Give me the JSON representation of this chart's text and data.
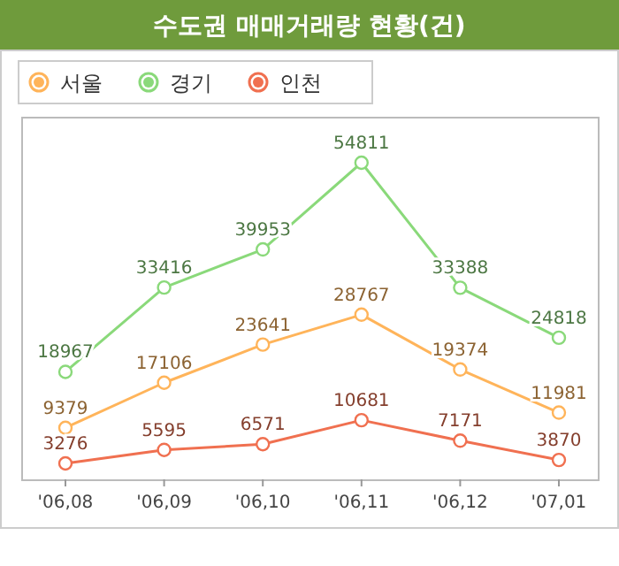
{
  "chart_data": {
    "type": "line",
    "title": "수도권 매매거래량 현황(건)",
    "categories": [
      "'06,08",
      "'06,09",
      "'06,10",
      "'06,11",
      "'06,12",
      "'07,01"
    ],
    "series": [
      {
        "name": "서울",
        "color": "#ffb45a",
        "values": [
          9379,
          17106,
          23641,
          28767,
          19374,
          11981
        ]
      },
      {
        "name": "경기",
        "color": "#8ad97a",
        "values": [
          18967,
          33416,
          39953,
          54811,
          33388,
          24818
        ]
      },
      {
        "name": "인천",
        "color": "#f07050",
        "values": [
          3276,
          5595,
          6571,
          10681,
          7171,
          3870
        ]
      }
    ],
    "data_labels": true,
    "legend": "top left",
    "marker": "circle",
    "line_style": "solid"
  }
}
